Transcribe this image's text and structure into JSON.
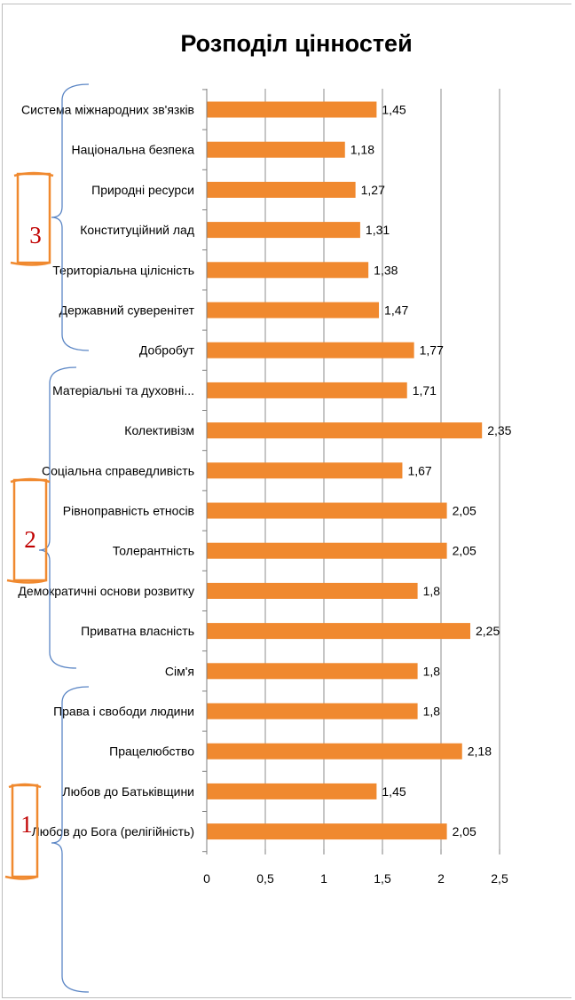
{
  "chart_data": {
    "type": "bar",
    "orientation": "horizontal",
    "title": "Розподіл цінностей",
    "categories": [
      "Система міжнародних зв'язків",
      "Національна безпека",
      "Природні ресурси",
      "Конституційний лад",
      "Територіальна цілісність",
      "Державний суверенітет",
      "Добробут",
      "Матеріальні та духовні...",
      "Колективізм",
      "Соціальна справедливість",
      "Рівноправність етносів",
      "Толерантність",
      "Демократичні основи розвитку",
      "Приватна власність",
      "Сім'я",
      "Права і свободи людини",
      "Працелюбство",
      "Любов до Батьківщини",
      "Любов до Бога (релігійність)"
    ],
    "values": [
      1.45,
      1.18,
      1.27,
      1.31,
      1.38,
      1.47,
      1.77,
      1.71,
      2.35,
      1.67,
      2.05,
      2.05,
      1.8,
      2.25,
      1.8,
      1.8,
      2.18,
      1.45,
      2.05
    ],
    "value_labels": [
      "1,45",
      "1,18",
      "1,27",
      "1,31",
      "1,38",
      "1,47",
      "1,77",
      "1,71",
      "2,35",
      "1,67",
      "2,05",
      "2,05",
      "1,8",
      "2,25",
      "1,8",
      "1,8",
      "2,18",
      "1,45",
      "2,05"
    ],
    "xlim": [
      0,
      2.5
    ],
    "x_ticks": [
      0,
      0.5,
      1,
      1.5,
      2,
      2.5
    ],
    "x_tick_labels": [
      "0",
      "0,5",
      "1",
      "1,5",
      "2",
      "2,5"
    ],
    "grid": true,
    "bar_color": "#f0892f",
    "groups": [
      {
        "label": "3",
        "first": 0,
        "last": 6
      },
      {
        "label": "2",
        "first": 7,
        "last": 14
      },
      {
        "label": "1",
        "first": 15,
        "last": 18
      }
    ],
    "annotation_colors": {
      "brace": "#5b86c5",
      "box": "#f0892f",
      "number": "#c00000"
    }
  }
}
